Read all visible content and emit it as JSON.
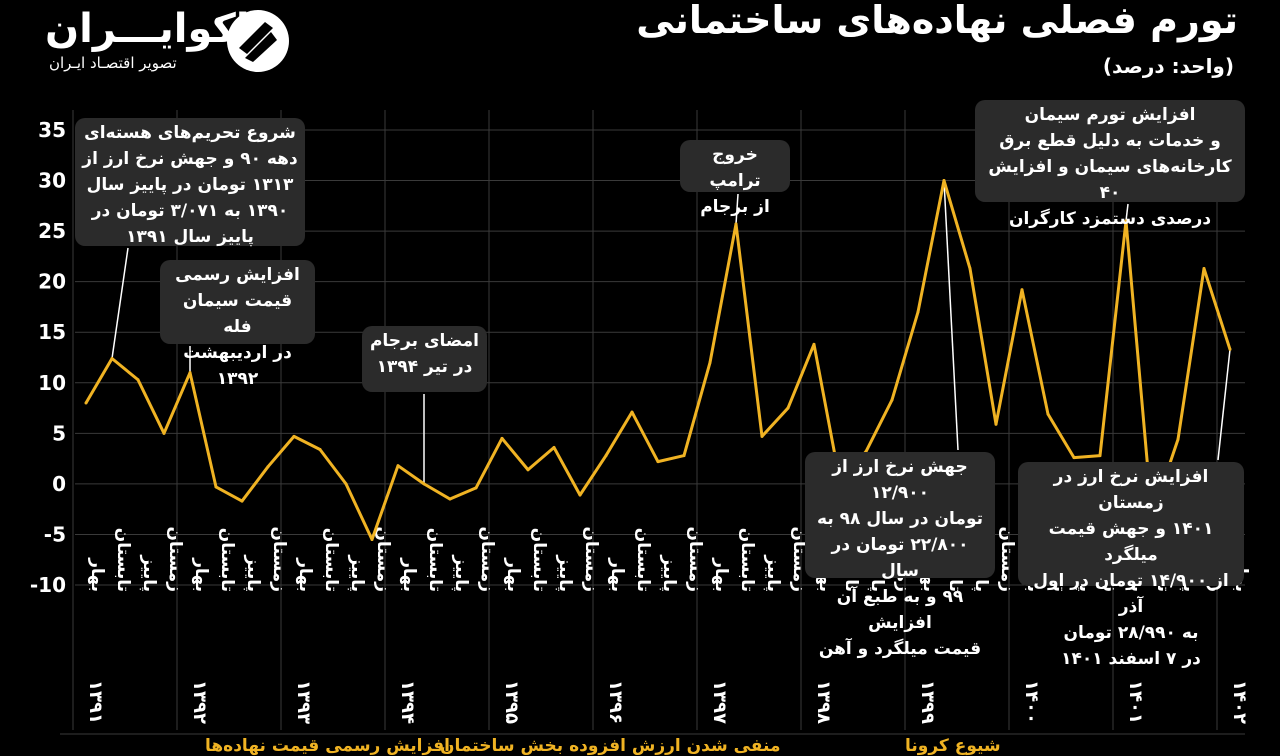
{
  "title": "تورم فصلی نهاده‌های ساختمانی",
  "unit": "(واحد: درصد)",
  "brand": {
    "name": "اکوایـــران",
    "tagline": "تصویر اقتصـاد ایـران"
  },
  "colors": {
    "background": "#000000",
    "line": "#f0b323",
    "grid": "#3a3a3a",
    "annotation_bg": "#2b2b2b",
    "text": "#ffffff"
  },
  "chart_data": {
    "type": "line",
    "title": "تورم فصلی نهاده‌های ساختمانی",
    "ylabel": "",
    "xlabel": "",
    "ylim": [
      -10,
      35
    ],
    "yticks": [
      "35",
      "30",
      "25",
      "20",
      "15",
      "10",
      "5",
      "0",
      "-5",
      "-10"
    ],
    "ytick_values": [
      35,
      30,
      25,
      20,
      15,
      10,
      5,
      0,
      -5,
      -10
    ],
    "grid": true,
    "season_labels": [
      "بهار",
      "تابستان",
      "پاییز",
      "زمستان"
    ],
    "years": [
      "۱۳۹۱",
      "۱۳۹۲",
      "۱۳۹۳",
      "۱۳۹۴",
      "۱۳۹۵",
      "۱۳۹۶",
      "۱۳۹۷",
      "۱۳۹۸",
      "۱۳۹۹",
      "۱۴۰۰",
      "۱۴۰۱",
      "۱۴۰۲"
    ],
    "x": [
      "بهار ۱۳۹۱",
      "تابستان ۱۳۹۱",
      "پاییز ۱۳۹۱",
      "زمستان ۱۳۹۱",
      "بهار ۱۳۹۲",
      "تابستان ۱۳۹۲",
      "پاییز ۱۳۹۲",
      "زمستان ۱۳۹۲",
      "بهار ۱۳۹۳",
      "تابستان ۱۳۹۳",
      "پاییز ۱۳۹۳",
      "زمستان ۱۳۹۳",
      "بهار ۱۳۹۴",
      "تابستان ۱۳۹۴",
      "پاییز ۱۳۹۴",
      "زمستان ۱۳۹۴",
      "بهار ۱۳۹۵",
      "تابستان ۱۳۹۵",
      "پاییز ۱۳۹۵",
      "زمستان ۱۳۹۵",
      "بهار ۱۳۹۶",
      "تابستان ۱۳۹۶",
      "پاییز ۱۳۹۶",
      "زمستان ۱۳۹۶",
      "بهار ۱۳۹۷",
      "تابستان ۱۳۹۷",
      "پاییز ۱۳۹۷",
      "زمستان ۱۳۹۷",
      "بهار ۱۳۹۸",
      "تابستان ۱۳۹۸",
      "پاییز ۱۳۹۸",
      "زمستان ۱۳۹۸",
      "بهار ۱۳۹۹",
      "تابستان ۱۳۹۹",
      "پاییز ۱۳۹۹",
      "زمستان ۱۳۹۹",
      "بهار ۱۴۰۰",
      "تابستان ۱۴۰۰",
      "پاییز ۱۴۰۰",
      "زمستان ۱۴۰۰",
      "بهار ۱۴۰۱",
      "تابستان ۱۴۰۱",
      "پاییز ۱۴۰۱",
      "زمستان ۱۴۰۱",
      "بهار ۱۴۰۲"
    ],
    "values": [
      8,
      12.4,
      10.3,
      5,
      11,
      -0.3,
      -1.7,
      1.7,
      4.7,
      3.4,
      0,
      -5.5,
      1.8,
      0,
      -1.5,
      -0.4,
      4.5,
      1.4,
      3.6,
      -1.1,
      2.8,
      7.1,
      2.2,
      2.8,
      12,
      25.7,
      4.7,
      7.5,
      13.8,
      0.2,
      3.2,
      8.3,
      17,
      30,
      21.3,
      5.9,
      19.2,
      6.9,
      2.6,
      2.8,
      26,
      -3.2,
      4.4,
      21.3,
      13.3
    ],
    "annotations": [
      {
        "text": [
          "شروع تحریم‌های هسته‌ای",
          "دهه ۹۰ و جهش نرخ ارز از",
          "۱۳۱۳ تومان در پاییز سال",
          "۱۳۹۰ به ۳/۰۷۱ تومان در",
          "پاییز سال ۱۳۹۱"
        ],
        "point_index": 1
      },
      {
        "text": [
          "افزایش رسمی",
          "قیمت سیمان فله",
          "در اردیبهشت ۱۳۹۲"
        ],
        "point_index": 4
      },
      {
        "text": [
          "امضای برجام",
          "در تیر ۱۳۹۴"
        ],
        "point_index": 13
      },
      {
        "text": [
          "خروج ترامپ",
          "از برجام"
        ],
        "point_index": 25
      },
      {
        "text": [
          "افزایش تورم سیمان",
          "و خدمات به دلیل قطع برق",
          "کارخانه‌های سیمان و افزایش ۴۰",
          "درصدی دستمزد کارگران"
        ],
        "point_index": 40
      },
      {
        "text": [
          "جهش نرخ ارز از ۱۲/۹۰۰",
          "تومان در سال ۹۸ به",
          "۲۲/۸۰۰ تومان در سال",
          "۹۹ و به طبع آن افزایش",
          "قیمت میلگرد و آهن"
        ],
        "point_index": 33
      },
      {
        "text": [
          "افزایش نرخ ارز در زمستان",
          "۱۴۰۱ و جهش قیمت میلگرد",
          "از ۱۴/۹۰۰ تومان در اول آذر",
          "به ۲۸/۹۹۰ تومان",
          "در ۷ اسفند ۱۴۰۱"
        ],
        "point_index": 44
      }
    ]
  },
  "bottom_notes": [
    "افزایش رسمی قیمت نهاده‌ها",
    "منفی شدن ارزش افزوده بخش ساختمان",
    "شیوع کرونا"
  ]
}
